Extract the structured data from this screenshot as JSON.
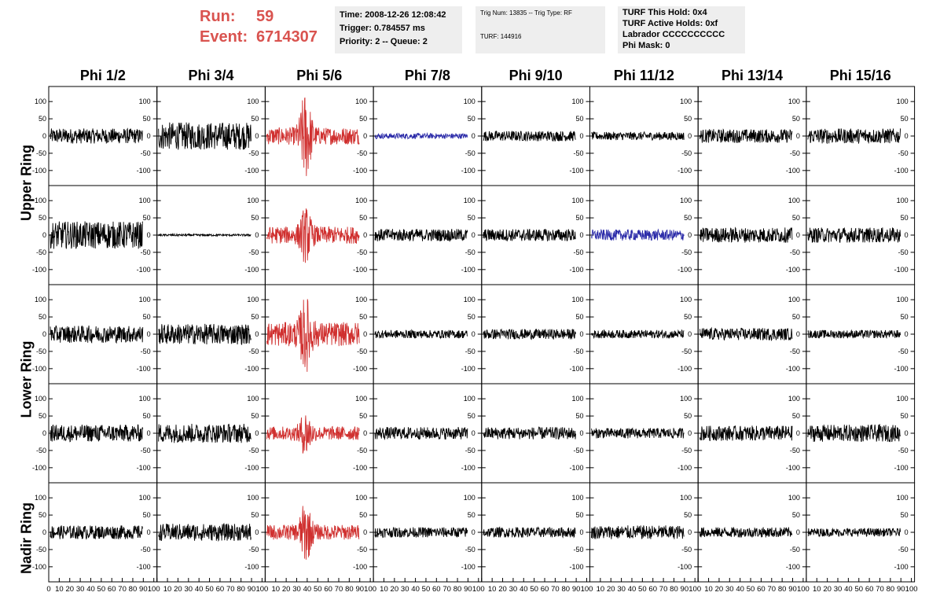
{
  "run": {
    "run_label": "Run:",
    "run_value": "59",
    "event_label": "Event:",
    "event_value": "6714307"
  },
  "info1": {
    "time": "Time: 2008-12-26 12:08:42",
    "trigger": "Trigger: 0.784557 ms",
    "priority": "Priority: 2 -- Queue: 2"
  },
  "info2": {
    "trig": "Trig Num: 13835 -- Trig Type: RF",
    "turf": "TURF: 144916"
  },
  "info3": {
    "hold": "TURF This Hold: 0x4",
    "active": "TURF Active Holds: 0xf",
    "labrador": "Labrador CCCCCCCCCC",
    "phimask": "Phi Mask: 0"
  },
  "columns": [
    "Phi 1/2",
    "Phi 3/4",
    "Phi 5/6",
    "Phi 7/8",
    "Phi 9/10",
    "Phi 11/12",
    "Phi 13/14",
    "Phi 15/16"
  ],
  "rows": [
    "Upper Ring",
    "Lower Ring",
    "Nadir Ring"
  ],
  "colors": {
    "normal": "#000000",
    "triggered": "#d0302f",
    "masked": "#2a2aa8",
    "accent": "#d9534f"
  },
  "chart_data": {
    "type": "line",
    "ylim": [
      -130,
      130
    ],
    "xlim": [
      0,
      100
    ],
    "y_ticks": [
      -100,
      -50,
      0,
      50,
      100
    ],
    "x_tick_labels": [
      "0",
      "10",
      "20",
      "30",
      "40",
      "50",
      "60",
      "70",
      "80",
      "90",
      "100"
    ],
    "grid": false,
    "panels": [
      [
        {
          "color": "normal",
          "amp": 22,
          "burst": 0
        },
        {
          "color": "normal",
          "amp": 40,
          "burst": 0
        },
        {
          "color": "triggered",
          "amp": 25,
          "burst": 110
        },
        {
          "color": "masked",
          "amp": 8,
          "burst": 0
        },
        {
          "color": "normal",
          "amp": 15,
          "burst": 0
        },
        {
          "color": "normal",
          "amp": 12,
          "burst": 0
        },
        {
          "color": "normal",
          "amp": 20,
          "burst": 0
        },
        {
          "color": "normal",
          "amp": 22,
          "burst": 0
        }
      ],
      [
        {
          "color": "normal",
          "amp": 40,
          "burst": 0
        },
        {
          "color": "normal",
          "amp": 3,
          "burst": 0
        },
        {
          "color": "triggered",
          "amp": 25,
          "burst": 60
        },
        {
          "color": "normal",
          "amp": 18,
          "burst": 0
        },
        {
          "color": "normal",
          "amp": 18,
          "burst": 0
        },
        {
          "color": "masked",
          "amp": 16,
          "burst": 0
        },
        {
          "color": "normal",
          "amp": 22,
          "burst": 0
        },
        {
          "color": "normal",
          "amp": 22,
          "burst": 0
        }
      ],
      [
        {
          "color": "normal",
          "amp": 25,
          "burst": 0
        },
        {
          "color": "normal",
          "amp": 30,
          "burst": 0
        },
        {
          "color": "triggered",
          "amp": 35,
          "burst": 80
        },
        {
          "color": "normal",
          "amp": 12,
          "burst": 0
        },
        {
          "color": "normal",
          "amp": 15,
          "burst": 0
        },
        {
          "color": "normal",
          "amp": 12,
          "burst": 0
        },
        {
          "color": "normal",
          "amp": 18,
          "burst": 0
        },
        {
          "color": "normal",
          "amp": 12,
          "burst": 0
        }
      ],
      [
        {
          "color": "normal",
          "amp": 25,
          "burst": 0
        },
        {
          "color": "normal",
          "amp": 28,
          "burst": 0
        },
        {
          "color": "triggered",
          "amp": 20,
          "burst": 50
        },
        {
          "color": "normal",
          "amp": 18,
          "burst": 0
        },
        {
          "color": "normal",
          "amp": 18,
          "burst": 0
        },
        {
          "color": "normal",
          "amp": 15,
          "burst": 0
        },
        {
          "color": "normal",
          "amp": 22,
          "burst": 0
        },
        {
          "color": "normal",
          "amp": 25,
          "burst": 0
        }
      ],
      [
        {
          "color": "normal",
          "amp": 20,
          "burst": 0
        },
        {
          "color": "normal",
          "amp": 25,
          "burst": 0
        },
        {
          "color": "triggered",
          "amp": 22,
          "burst": 70
        },
        {
          "color": "normal",
          "amp": 15,
          "burst": 0
        },
        {
          "color": "normal",
          "amp": 15,
          "burst": 0
        },
        {
          "color": "normal",
          "amp": 20,
          "burst": 0
        },
        {
          "color": "normal",
          "amp": 15,
          "burst": 0
        },
        {
          "color": "normal",
          "amp": 12,
          "burst": 0
        }
      ]
    ]
  }
}
